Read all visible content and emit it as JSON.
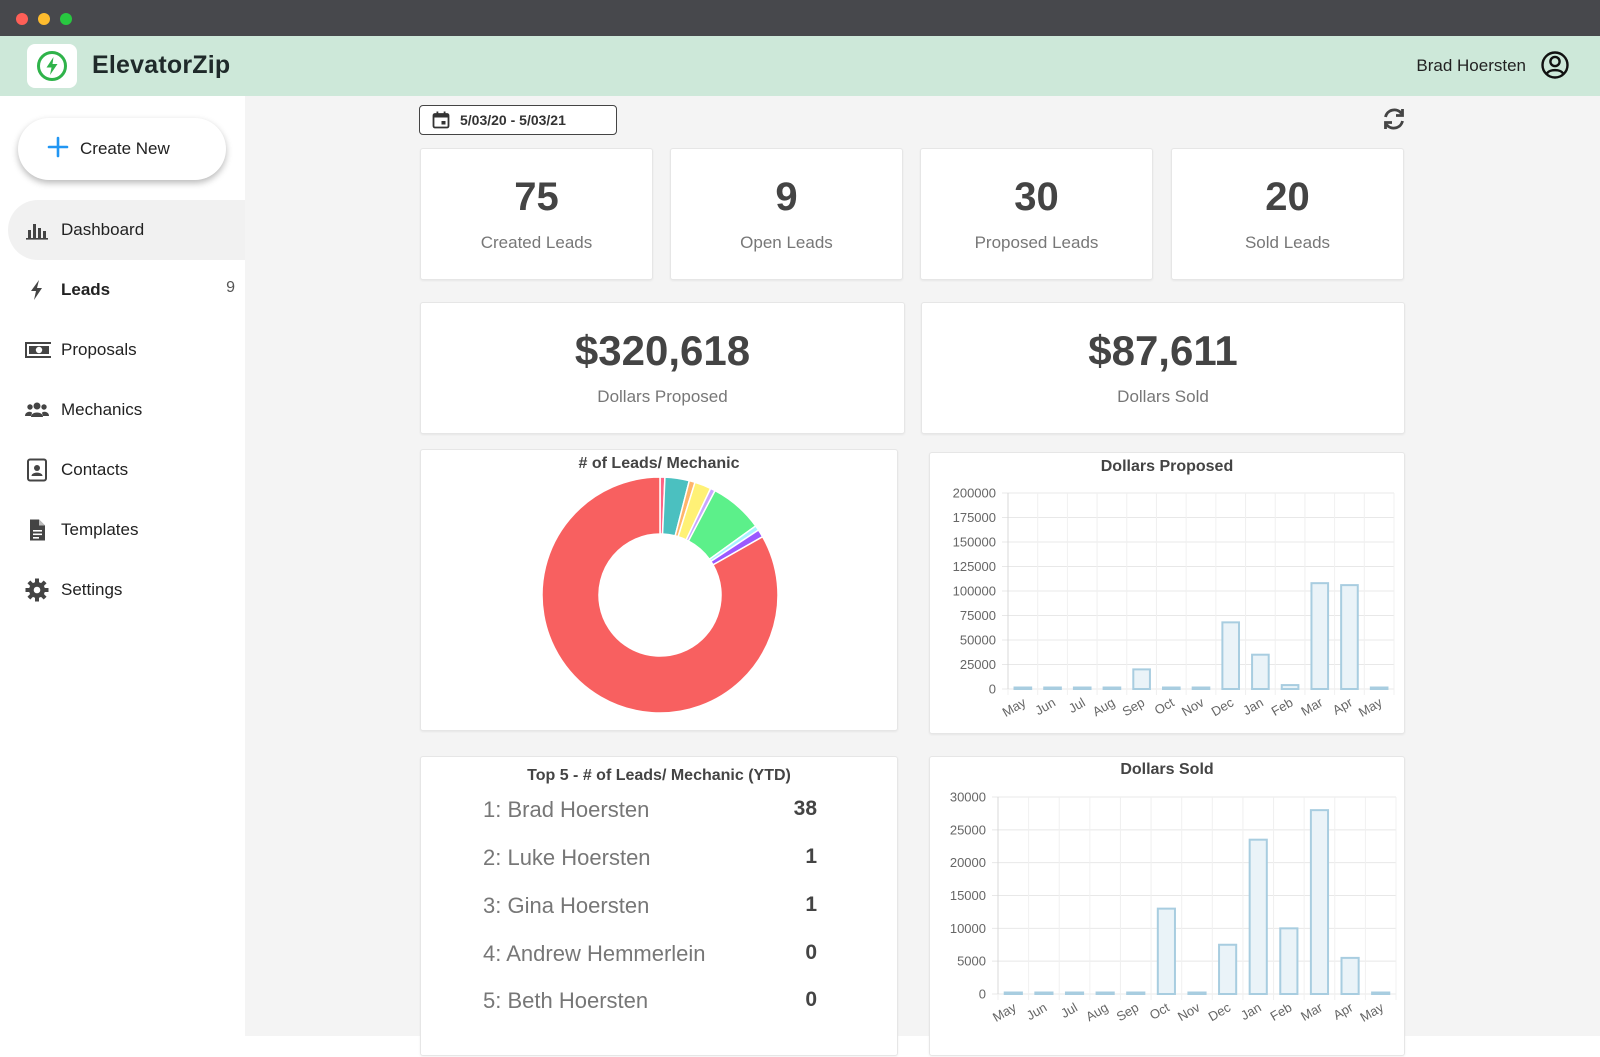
{
  "window": {
    "controls": [
      "close",
      "minimize",
      "zoom"
    ]
  },
  "header": {
    "app_name": "ElevatorZip",
    "user_name": "Brad Hoersten",
    "logo_icon": "bolt-circle-icon",
    "accent": "#2fb34a"
  },
  "sidebar": {
    "create_label": "Create New",
    "items": [
      {
        "label": "Dashboard",
        "icon": "bar-chart-icon",
        "active": true,
        "count": ""
      },
      {
        "label": "Leads",
        "icon": "bolt-icon",
        "active": false,
        "count": "9"
      },
      {
        "label": "Proposals",
        "icon": "money-icon",
        "active": false,
        "count": ""
      },
      {
        "label": "Mechanics",
        "icon": "users-icon",
        "active": false,
        "count": ""
      },
      {
        "label": "Contacts",
        "icon": "contact-card-icon",
        "active": false,
        "count": ""
      },
      {
        "label": "Templates",
        "icon": "document-icon",
        "active": false,
        "count": ""
      },
      {
        "label": "Settings",
        "icon": "gear-icon",
        "active": false,
        "count": ""
      }
    ]
  },
  "toolbar": {
    "date_range": "5/03/20 - 5/03/21"
  },
  "stats": [
    {
      "value": "75",
      "label": "Created Leads"
    },
    {
      "value": "9",
      "label": "Open Leads"
    },
    {
      "value": "30",
      "label": "Proposed Leads"
    },
    {
      "value": "20",
      "label": "Sold Leads"
    }
  ],
  "money": [
    {
      "value": "$320,618",
      "label": "Dollars Proposed"
    },
    {
      "value": "$87,611",
      "label": "Dollars Sold"
    }
  ],
  "top5": {
    "title": "Top 5 - # of Leads/ Mechanic (YTD)",
    "rows": [
      {
        "name": "1: Brad Hoersten",
        "count": "38"
      },
      {
        "name": "2: Luke Hoersten",
        "count": "1"
      },
      {
        "name": "3: Gina Hoersten",
        "count": "1"
      },
      {
        "name": "4: Andrew Hemmerlein",
        "count": "0"
      },
      {
        "name": "5: Beth Hoersten",
        "count": "0"
      }
    ]
  },
  "chart_data": [
    {
      "type": "pie",
      "title": "# of Leads/ Mechanic",
      "values": [
        0.5,
        2.5,
        0.6,
        1.7,
        0.5,
        5.5,
        0.5,
        0.8,
        62.5
      ],
      "colors": [
        "#ff6384",
        "#4bc0c0",
        "#ffb56b",
        "#fff176",
        "#c9a4ff",
        "#5cf08a",
        "#a7f3ff",
        "#9b59ff",
        "#f86060"
      ]
    },
    {
      "type": "bar",
      "title": "Dollars Proposed",
      "categories": [
        "May",
        "Jun",
        "Jul",
        "Aug",
        "Sep",
        "Oct",
        "Nov",
        "Dec",
        "Jan",
        "Feb",
        "Mar",
        "Apr",
        "May"
      ],
      "values": [
        0,
        0,
        0,
        0,
        20000,
        0,
        1500,
        68000,
        35000,
        4000,
        108000,
        106000,
        0
      ],
      "ylim": [
        0,
        200000
      ],
      "yticks": [
        "200000",
        "175000",
        "150000",
        "125000",
        "100000",
        "75000",
        "50000",
        "25000",
        "0"
      ],
      "grid": true,
      "color": "#a8cde0"
    },
    {
      "type": "bar",
      "title": "Dollars Sold",
      "categories": [
        "May",
        "Jun",
        "Jul",
        "Aug",
        "Sep",
        "Oct",
        "Nov",
        "Dec",
        "Jan",
        "Feb",
        "Mar",
        "Apr",
        "May"
      ],
      "values": [
        0,
        0,
        0,
        0,
        0,
        13000,
        0,
        7500,
        23500,
        10000,
        28000,
        5500,
        0
      ],
      "ylim": [
        0,
        30000
      ],
      "yticks": [
        "30000",
        "25000",
        "20000",
        "15000",
        "10000",
        "5000",
        "0"
      ],
      "grid": true,
      "color": "#a8cde0"
    }
  ]
}
